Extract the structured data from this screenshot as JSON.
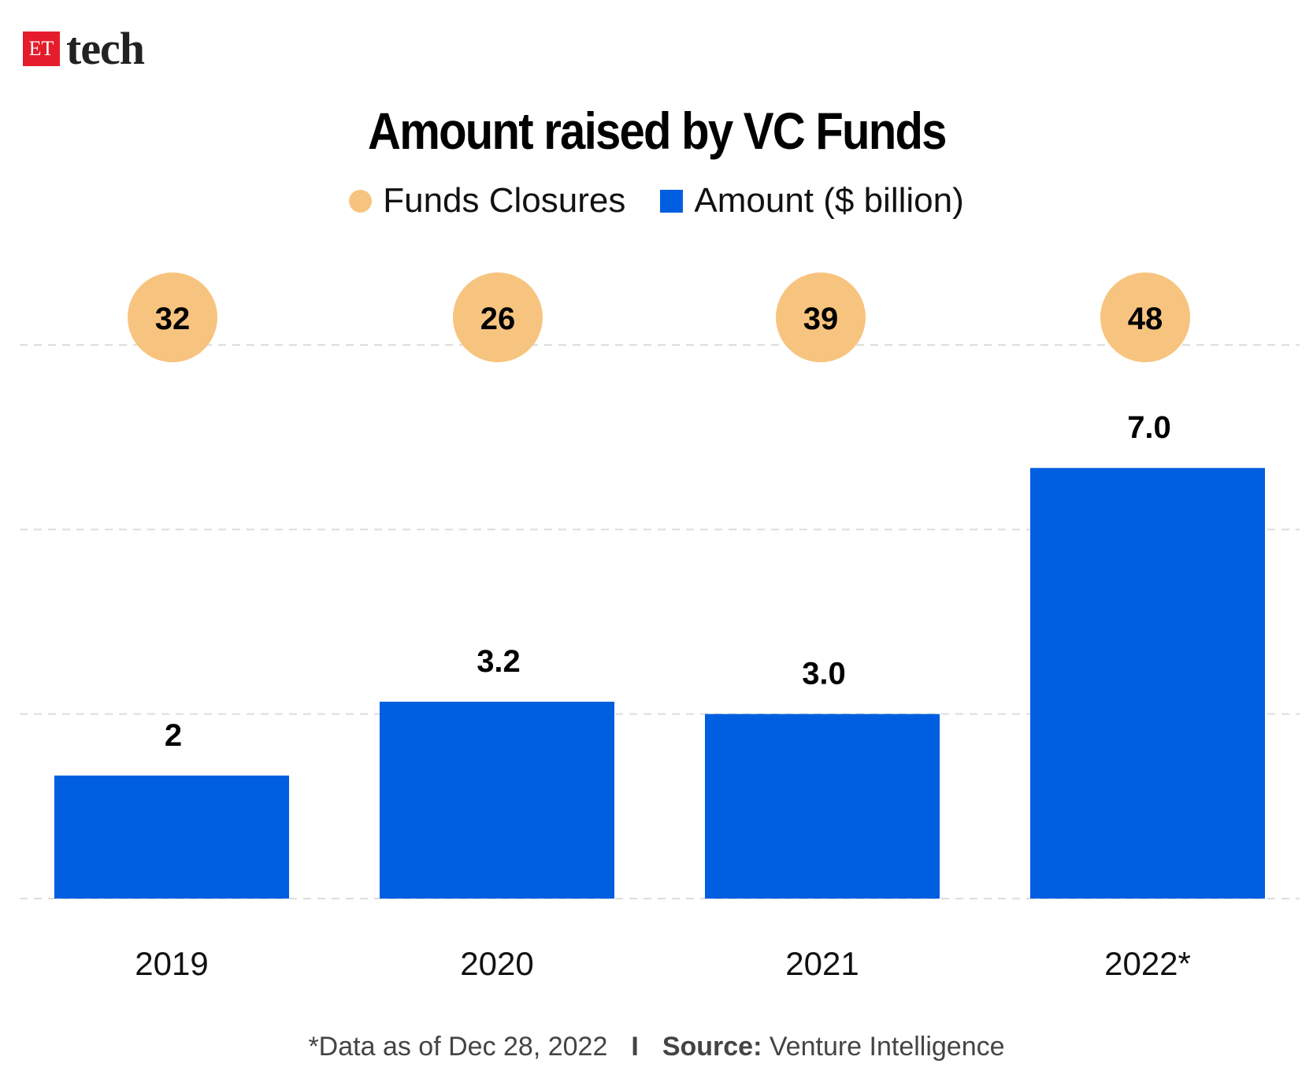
{
  "logo": {
    "badge": "ET",
    "text": "tech"
  },
  "chart_data": {
    "type": "bar",
    "title": "Amount raised by VC Funds",
    "categories": [
      "2019",
      "2020",
      "2021",
      "2022*"
    ],
    "series": [
      {
        "name": "Amount ($ billion)",
        "values": [
          2,
          3.2,
          3.0,
          7.0
        ],
        "labels": [
          "2",
          "3.2",
          "3.0",
          "7.0"
        ],
        "color": "#005ee0"
      },
      {
        "name": "Funds Closures",
        "values": [
          32,
          26,
          39,
          48
        ],
        "labels": [
          "32",
          "26",
          "39",
          "48"
        ],
        "color": "#f7c47f"
      }
    ],
    "ylim": [
      0,
      9
    ],
    "grid": true,
    "legend": "top-center",
    "xlabel": "",
    "ylabel": ""
  },
  "footer": {
    "note": "*Data as of Dec 28, 2022",
    "separator": "I",
    "source_label": "Source:",
    "source": "Venture Intelligence"
  }
}
